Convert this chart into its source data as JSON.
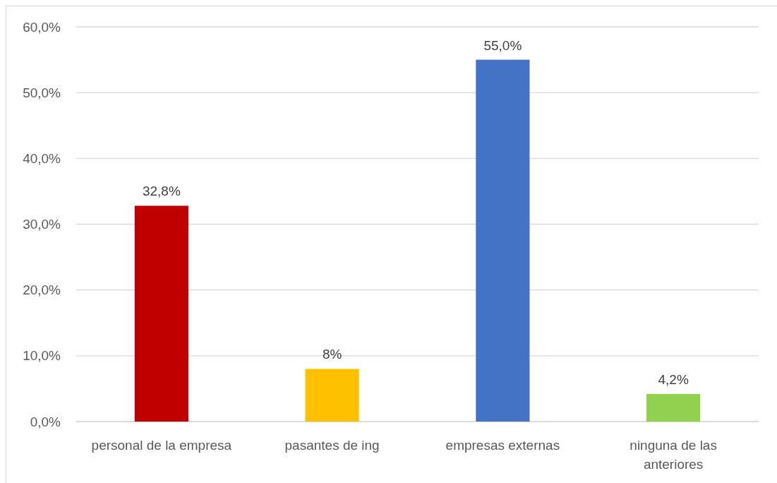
{
  "chart_data": {
    "type": "bar",
    "categories": [
      "personal de la empresa",
      "pasantes de ing",
      "empresas externas",
      "ninguna de las anteriores"
    ],
    "values": [
      32.8,
      8,
      55,
      4.2
    ],
    "colors": [
      "#c00000",
      "#ffc000",
      "#4472c4",
      "#92d050"
    ],
    "value_labels": [
      "32,8%",
      "8%",
      "55,0%",
      "4,2%"
    ],
    "ylim": [
      0,
      60
    ],
    "yticks": [
      {
        "value": 0,
        "label": "0,0%"
      },
      {
        "value": 10,
        "label": "10,0%"
      },
      {
        "value": 20,
        "label": "20,0%"
      },
      {
        "value": 30,
        "label": "30,0%"
      },
      {
        "value": 40,
        "label": "40,0%"
      },
      {
        "value": 50,
        "label": "50,0%"
      },
      {
        "value": 60,
        "label": "60,0%"
      }
    ],
    "grid": "y"
  }
}
